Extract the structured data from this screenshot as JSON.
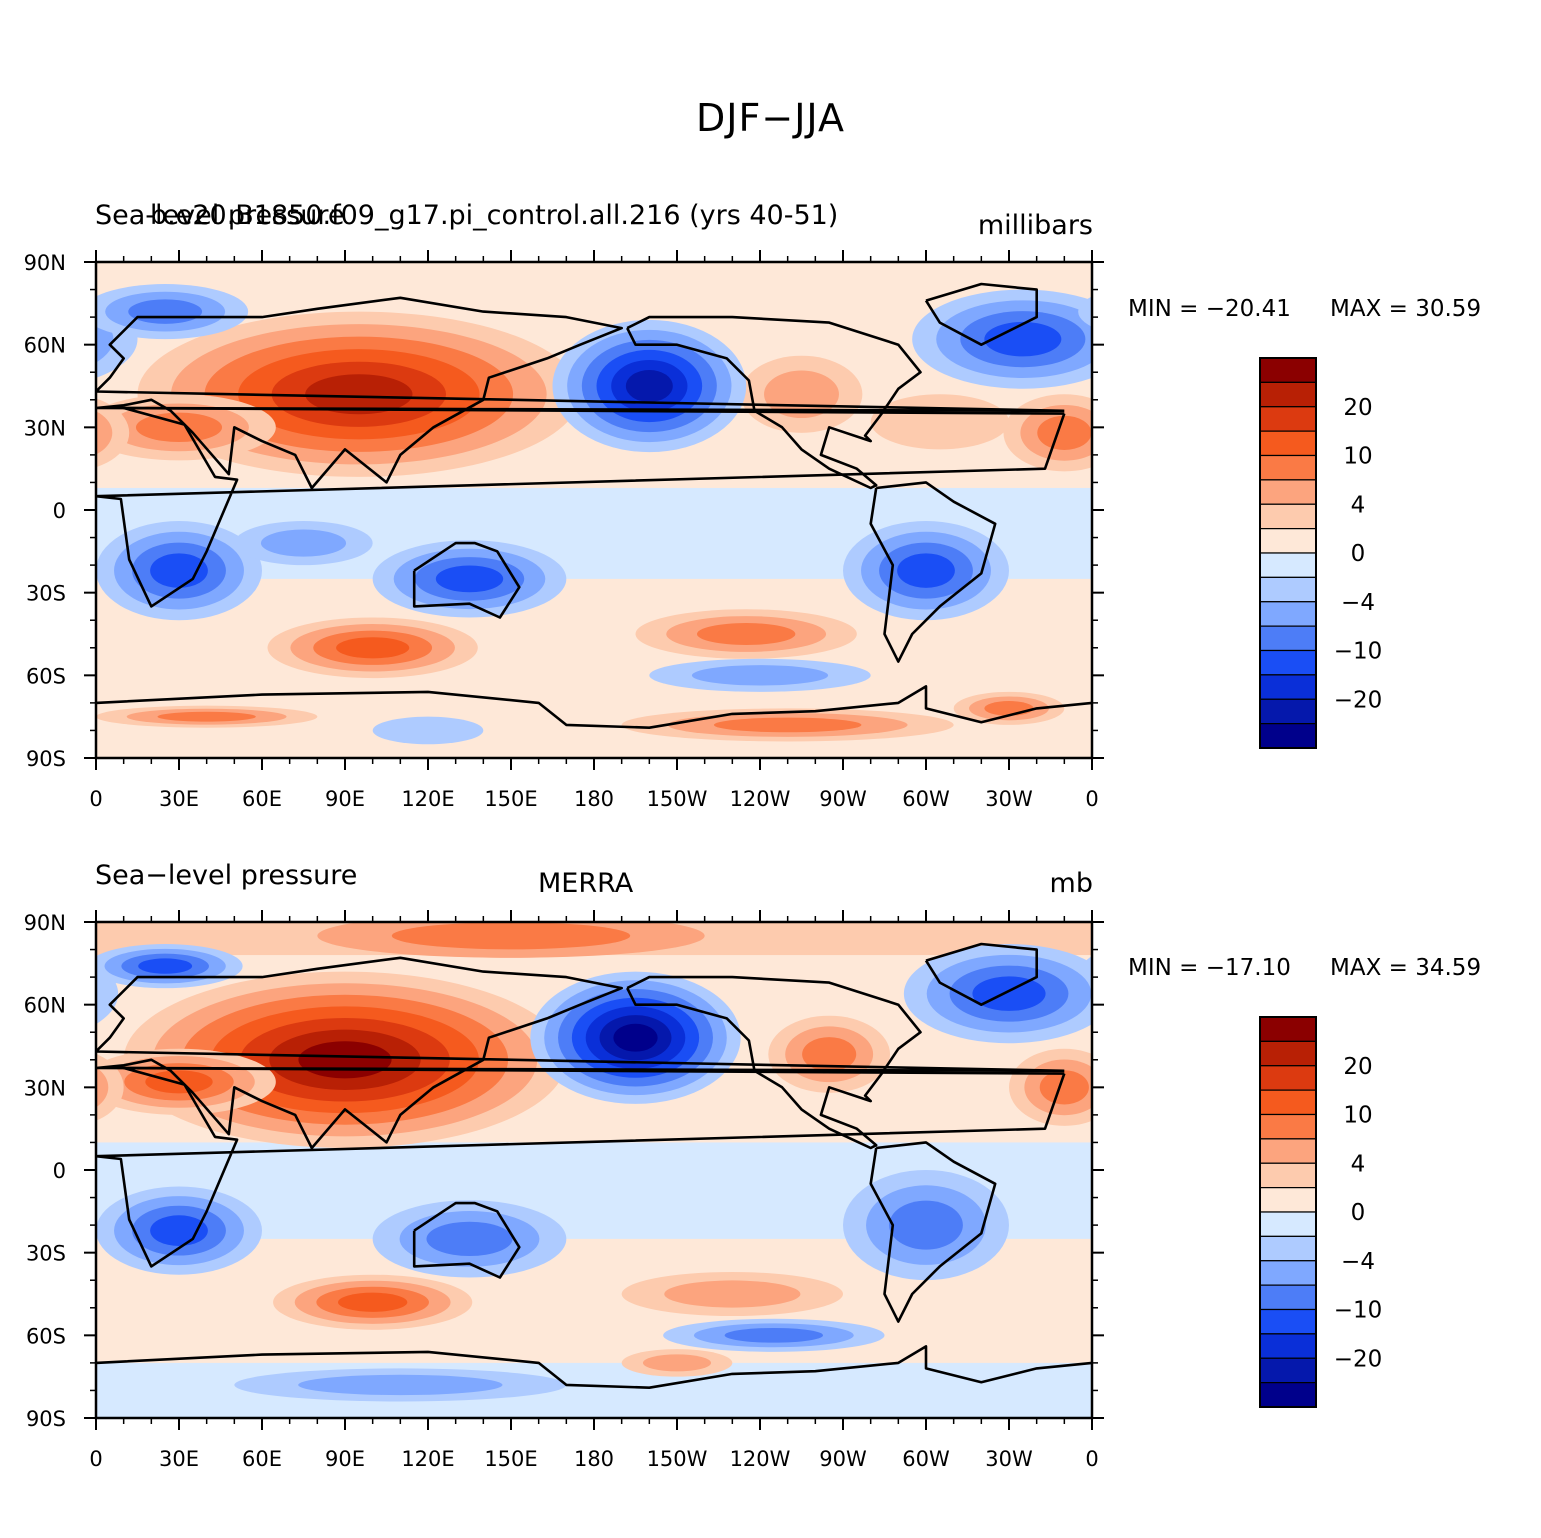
{
  "figure_title": "DJF−JJA",
  "lat_labels": [
    "90N",
    "60N",
    "30N",
    "0",
    "30S",
    "60S",
    "90S"
  ],
  "lon_labels": [
    "0",
    "30E",
    "60E",
    "90E",
    "120E",
    "150E",
    "180",
    "150W",
    "120W",
    "90W",
    "60W",
    "30W",
    "0"
  ],
  "colorbar": {
    "labels": [
      "20",
      "10",
      "4",
      "0",
      "−4",
      "−10",
      "−20"
    ],
    "colors": [
      "#8b0000",
      "#b82005",
      "#dc3a10",
      "#f55a1e",
      "#fa7a45",
      "#fca47e",
      "#fdcbae",
      "#fee8d8",
      "#d6e9ff",
      "#aecbff",
      "#7fa8ff",
      "#4d7df7",
      "#1a4ef5",
      "#0a2fd8",
      "#0518ac",
      "#00008b"
    ]
  },
  "panels": [
    {
      "id": "model",
      "left_title": "Sea-level pressure",
      "center_title": "b.e20.B1850.f09_g17.pi_control.all.216 (yrs 40-51)",
      "right_title": "millibars",
      "min_label": "MIN = −20.41",
      "max_label": "MAX =   30.59"
    },
    {
      "id": "obs",
      "left_title": "Sea−level pressure",
      "center_title": "MERRA",
      "right_title": "mb",
      "min_label": "MIN = −17.10",
      "max_label": "MAX =   34.59"
    }
  ]
}
